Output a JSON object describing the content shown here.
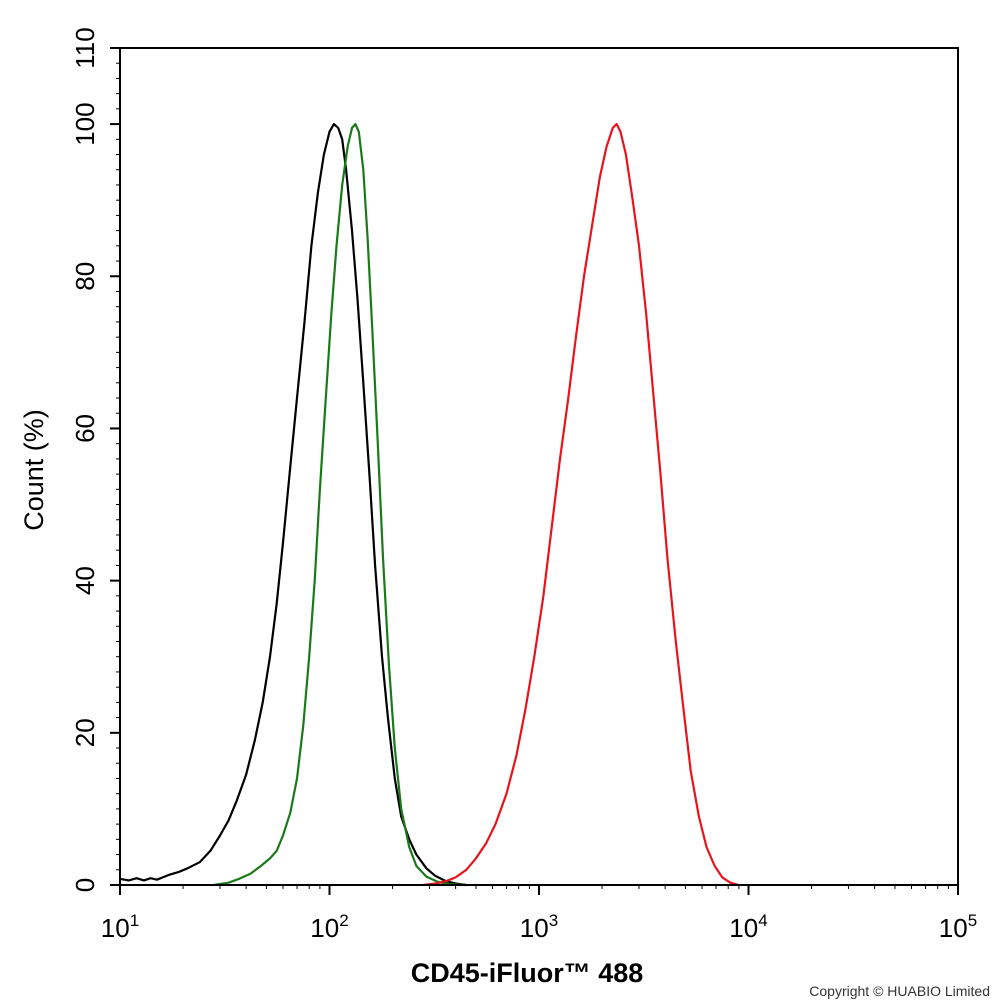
{
  "chart_data": {
    "type": "line",
    "xlabel": "CD45-iFluor™ 488",
    "ylabel": "Count  (%)",
    "xscale": "log",
    "xlim": [
      10,
      100000
    ],
    "ylim": [
      0,
      110
    ],
    "x_ticks": [
      {
        "base": "10",
        "exp": "1",
        "value": 10
      },
      {
        "base": "10",
        "exp": "2",
        "value": 100
      },
      {
        "base": "10",
        "exp": "3",
        "value": 1000
      },
      {
        "base": "10",
        "exp": "4",
        "value": 10000
      },
      {
        "base": "10",
        "exp": "5",
        "value": 100000
      }
    ],
    "y_ticks": [
      "0",
      "20",
      "40",
      "60",
      "80",
      "100",
      "110"
    ],
    "grid": false,
    "legend": "none",
    "series": [
      {
        "color": "#000000",
        "points": [
          [
            10,
            0.8
          ],
          [
            11,
            0.6
          ],
          [
            12,
            0.9
          ],
          [
            13,
            0.6
          ],
          [
            14,
            0.9
          ],
          [
            15,
            0.7
          ],
          [
            17,
            1.3
          ],
          [
            19,
            1.7
          ],
          [
            21,
            2.2
          ],
          [
            24,
            3.0
          ],
          [
            27,
            4.5
          ],
          [
            30,
            6.5
          ],
          [
            33,
            8.5
          ],
          [
            36,
            11
          ],
          [
            40,
            14.5
          ],
          [
            44,
            19
          ],
          [
            48,
            24
          ],
          [
            52,
            30
          ],
          [
            56,
            37
          ],
          [
            60,
            45
          ],
          [
            65,
            55
          ],
          [
            70,
            64
          ],
          [
            76,
            74
          ],
          [
            82,
            84
          ],
          [
            88,
            91
          ],
          [
            94,
            96
          ],
          [
            100,
            99
          ],
          [
            105,
            100
          ],
          [
            110,
            99.5
          ],
          [
            115,
            98
          ],
          [
            120,
            94
          ],
          [
            128,
            86
          ],
          [
            136,
            77
          ],
          [
            145,
            66
          ],
          [
            155,
            54
          ],
          [
            165,
            42
          ],
          [
            178,
            30
          ],
          [
            190,
            22
          ],
          [
            205,
            14
          ],
          [
            220,
            9
          ],
          [
            240,
            6
          ],
          [
            260,
            4
          ],
          [
            290,
            2.2
          ],
          [
            320,
            1.2
          ],
          [
            360,
            0.5
          ],
          [
            400,
            0.2
          ],
          [
            450,
            0
          ]
        ]
      },
      {
        "color": "#1a7a1a",
        "points": [
          [
            28,
            0
          ],
          [
            33,
            0.3
          ],
          [
            37,
            0.8
          ],
          [
            42,
            1.5
          ],
          [
            47,
            2.5
          ],
          [
            52,
            3.5
          ],
          [
            56,
            4.5
          ],
          [
            60,
            6.5
          ],
          [
            65,
            9.5
          ],
          [
            70,
            14
          ],
          [
            75,
            21
          ],
          [
            80,
            30
          ],
          [
            85,
            40
          ],
          [
            90,
            52
          ],
          [
            96,
            64
          ],
          [
            102,
            75
          ],
          [
            108,
            84
          ],
          [
            115,
            92
          ],
          [
            122,
            97
          ],
          [
            128,
            99.5
          ],
          [
            133,
            100
          ],
          [
            138,
            99
          ],
          [
            145,
            94
          ],
          [
            152,
            85
          ],
          [
            160,
            73
          ],
          [
            170,
            58
          ],
          [
            180,
            43
          ],
          [
            192,
            29
          ],
          [
            205,
            18
          ],
          [
            220,
            10
          ],
          [
            240,
            5
          ],
          [
            260,
            2.5
          ],
          [
            290,
            1.1
          ],
          [
            330,
            0.4
          ],
          [
            380,
            0.1
          ],
          [
            450,
            0
          ]
        ]
      },
      {
        "color": "#e8141c",
        "points": [
          [
            280,
            0
          ],
          [
            320,
            0.2
          ],
          [
            360,
            0.5
          ],
          [
            400,
            1
          ],
          [
            450,
            2
          ],
          [
            500,
            3.5
          ],
          [
            560,
            5.5
          ],
          [
            620,
            8
          ],
          [
            700,
            12
          ],
          [
            780,
            17
          ],
          [
            860,
            23
          ],
          [
            950,
            30
          ],
          [
            1050,
            38
          ],
          [
            1150,
            47
          ],
          [
            1260,
            56
          ],
          [
            1380,
            64
          ],
          [
            1500,
            72
          ],
          [
            1640,
            80
          ],
          [
            1800,
            87
          ],
          [
            1950,
            93
          ],
          [
            2100,
            97
          ],
          [
            2250,
            99.5
          ],
          [
            2350,
            100
          ],
          [
            2450,
            99
          ],
          [
            2600,
            96
          ],
          [
            2800,
            90
          ],
          [
            3000,
            84
          ],
          [
            3250,
            75
          ],
          [
            3500,
            65
          ],
          [
            3800,
            54
          ],
          [
            4100,
            43
          ],
          [
            4500,
            32
          ],
          [
            4900,
            23
          ],
          [
            5300,
            15
          ],
          [
            5800,
            9
          ],
          [
            6300,
            5
          ],
          [
            6900,
            2.5
          ],
          [
            7500,
            1
          ],
          [
            8200,
            0.3
          ],
          [
            9000,
            0
          ]
        ]
      }
    ]
  },
  "copyright": "Copyright © HUABIO Limited"
}
